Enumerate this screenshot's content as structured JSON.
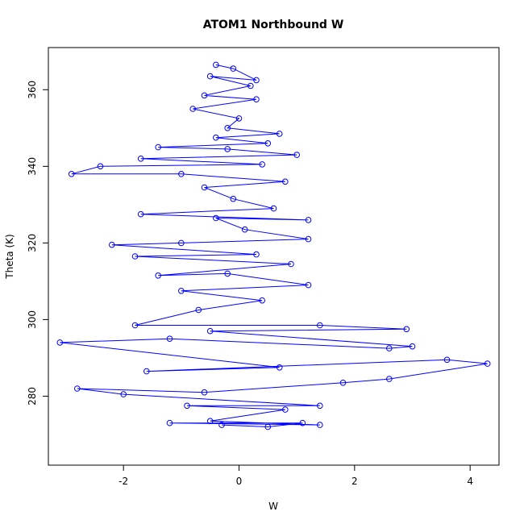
{
  "chart_data": {
    "type": "scatter",
    "title": "ATOM1 Northbound W",
    "xlabel": "W",
    "ylabel": "Theta (K)",
    "xlim": [
      -3.3,
      4.5
    ],
    "ylim": [
      262,
      371
    ],
    "x_ticks": [
      -2,
      0,
      2,
      4
    ],
    "y_ticks": [
      280,
      300,
      320,
      340,
      360
    ],
    "grid": false,
    "legend": "none",
    "marker": "open-circle",
    "connect_points": true,
    "series": [
      {
        "color": "#0000ff",
        "values": [
          [
            -0.3,
            272.5
          ],
          [
            0.5,
            272.0
          ],
          [
            1.1,
            273.0
          ],
          [
            -1.2,
            273.0
          ],
          [
            1.4,
            272.5
          ],
          [
            -0.5,
            273.5
          ],
          [
            0.8,
            276.5
          ],
          [
            -0.9,
            277.5
          ],
          [
            1.4,
            277.5
          ],
          [
            -2.0,
            280.5
          ],
          [
            -2.8,
            282.0
          ],
          [
            -0.6,
            281.0
          ],
          [
            1.8,
            283.5
          ],
          [
            2.6,
            284.5
          ],
          [
            4.3,
            288.5
          ],
          [
            3.6,
            289.5
          ],
          [
            -1.6,
            286.5
          ],
          [
            0.7,
            287.5
          ],
          [
            -3.1,
            294.0
          ],
          [
            -1.2,
            295.0
          ],
          [
            2.6,
            292.5
          ],
          [
            3.0,
            293.0
          ],
          [
            -0.5,
            297.0
          ],
          [
            2.9,
            297.5
          ],
          [
            1.4,
            298.5
          ],
          [
            -1.8,
            298.5
          ],
          [
            -0.7,
            302.5
          ],
          [
            0.4,
            305.0
          ],
          [
            -1.0,
            307.5
          ],
          [
            1.2,
            309.0
          ],
          [
            -0.2,
            312.0
          ],
          [
            -1.4,
            311.5
          ],
          [
            0.9,
            314.5
          ],
          [
            -1.8,
            316.5
          ],
          [
            0.3,
            317.0
          ],
          [
            -2.2,
            319.5
          ],
          [
            -1.0,
            320.0
          ],
          [
            1.2,
            321.0
          ],
          [
            0.1,
            323.5
          ],
          [
            -0.4,
            326.5
          ],
          [
            1.2,
            326.0
          ],
          [
            -1.7,
            327.5
          ],
          [
            0.6,
            329.0
          ],
          [
            -0.1,
            331.5
          ],
          [
            -0.6,
            334.5
          ],
          [
            0.8,
            336.0
          ],
          [
            -1.0,
            338.0
          ],
          [
            -2.9,
            338.0
          ],
          [
            -2.4,
            340.0
          ],
          [
            0.4,
            340.5
          ],
          [
            -1.7,
            342.0
          ],
          [
            1.0,
            343.0
          ],
          [
            -0.2,
            344.5
          ],
          [
            -1.4,
            345.0
          ],
          [
            0.5,
            346.0
          ],
          [
            -0.4,
            347.5
          ],
          [
            0.7,
            348.5
          ],
          [
            -0.2,
            350.0
          ],
          [
            0.0,
            352.5
          ],
          [
            -0.8,
            355.0
          ],
          [
            0.3,
            357.5
          ],
          [
            -0.6,
            358.5
          ],
          [
            0.2,
            361.0
          ],
          [
            -0.5,
            363.5
          ],
          [
            0.3,
            362.5
          ],
          [
            -0.1,
            365.5
          ],
          [
            -0.4,
            366.5
          ]
        ]
      }
    ]
  }
}
